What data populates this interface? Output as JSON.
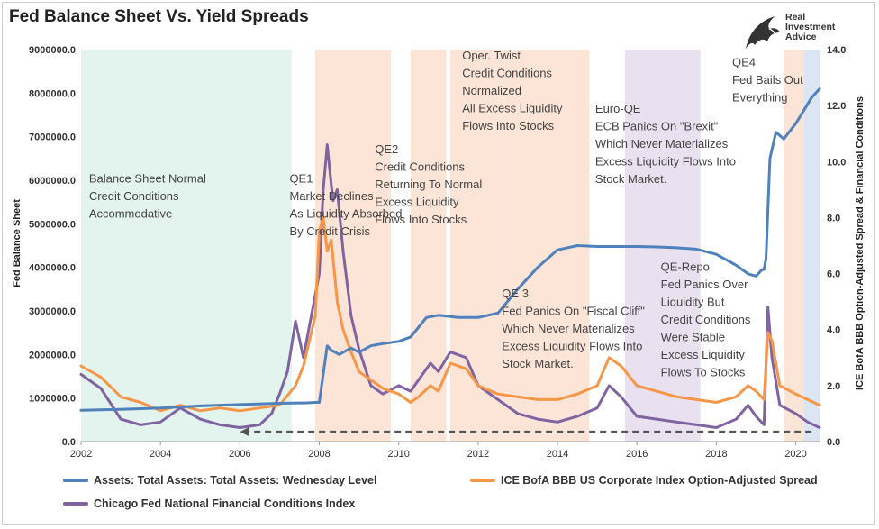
{
  "colors": {
    "assets": "#4f81bd",
    "spread": "#f79646",
    "nfci": "#8064a2",
    "band_green": "#e3f3ee",
    "band_orange": "#fce4d6",
    "band_purple": "#e9e1ef",
    "band_blue": "#dbe5f3",
    "arrow": "#555555"
  },
  "logo": {
    "line1": "Real",
    "line2": "Investment",
    "line3": "Advice"
  },
  "chart_data": {
    "type": "line",
    "title": "Fed Balance Sheet Vs. Yield Spreads",
    "ylabel_left": "Fed Balance Sheet",
    "ylabel_right": "ICE BofA BBB Option-Adjusted Spread & Financial Conditions",
    "xlim": [
      2002,
      2020.6
    ],
    "ylim_left": [
      0,
      9000000
    ],
    "ylim_right": [
      0,
      14
    ],
    "x_ticks": [
      2002,
      2004,
      2006,
      2008,
      2010,
      2012,
      2014,
      2016,
      2018,
      2020
    ],
    "y_left_ticks": [
      "0.0",
      "1000000.0",
      "2000000.0",
      "3000000.0",
      "4000000.0",
      "5000000.0",
      "6000000.0",
      "7000000.0",
      "8000000.0",
      "9000000.0"
    ],
    "y_right_ticks": [
      "0.0",
      "2.0",
      "4.0",
      "6.0",
      "8.0",
      "10.0",
      "12.0",
      "14.0"
    ],
    "grid": false,
    "legend_position": "bottom",
    "bands": [
      {
        "type": "green",
        "from": 2002.0,
        "to": 2007.3
      },
      {
        "type": "orange",
        "from": 2007.9,
        "to": 2009.8
      },
      {
        "type": "orange",
        "from": 2010.3,
        "to": 2011.2
      },
      {
        "type": "orange",
        "from": 2011.3,
        "to": 2012.5
      },
      {
        "type": "orange",
        "from": 2012.5,
        "to": 2014.8
      },
      {
        "type": "purple",
        "from": 2015.7,
        "to": 2017.6
      },
      {
        "type": "orange",
        "from": 2019.7,
        "to": 2020.2
      },
      {
        "type": "blue",
        "from": 2020.2,
        "to": 2020.6
      }
    ],
    "annotations": [
      {
        "lines": [
          "Balance Sheet Normal",
          "Credit Conditions",
          "Accommodative"
        ],
        "x": 2002.2,
        "y": 9.25
      },
      {
        "lines": [
          "QE1",
          "Market Declines",
          "As Liquidity Absorbed",
          "By Credit Crisis"
        ],
        "x": 2007.25,
        "y": 9.25
      },
      {
        "lines": [
          "QE2",
          "Credit Conditions",
          "Returning To Normal",
          "Excess Liquidity",
          "Flows Into Stocks"
        ],
        "x": 2009.4,
        "y": 10.3
      },
      {
        "lines": [
          "Oper. Twist",
          "Credit Conditions",
          "Normalized",
          "All Excess Liquidity",
          "Flows Into Stocks"
        ],
        "x": 2011.6,
        "y": 13.65
      },
      {
        "lines": [
          "Euro-QE",
          "ECB Panics On \"Brexit\"",
          "Which Never Materializes",
          "Excess Liquidity Flows Into",
          "Stock Market."
        ],
        "x": 2014.95,
        "y": 11.75
      },
      {
        "lines": [
          "QE 3",
          "Fed Panics On \"Fiscal Cliff\"",
          "Which Never Materializes",
          "Excess Liquidity Flows Into",
          "Stock Market."
        ],
        "x": 2012.6,
        "y": 5.15
      },
      {
        "lines": [
          "QE-Repo",
          "Fed Panics Over",
          "Liquidity But",
          "Credit Conditions",
          "Were Stable",
          "Excess Liquidity",
          "Flows To Stocks"
        ],
        "x": 2016.6,
        "y": 6.1
      },
      {
        "lines": [
          "QE4",
          "Fed Bails Out",
          "Everything"
        ],
        "x": 2018.4,
        "y": 13.4
      }
    ],
    "series": [
      {
        "name": "Assets: Total Assets: Total Assets: Wednesday Level",
        "axis": "left",
        "x": [
          2002.0,
          2003.0,
          2004.0,
          2005.0,
          2006.0,
          2007.0,
          2007.7,
          2007.9,
          2008.0,
          2008.2,
          2008.3,
          2008.5,
          2008.8,
          2009.0,
          2009.3,
          2009.6,
          2010.0,
          2010.3,
          2010.7,
          2011.0,
          2011.5,
          2012.0,
          2012.5,
          2013.0,
          2013.5,
          2014.0,
          2014.5,
          2015.0,
          2015.5,
          2016.0,
          2016.5,
          2017.0,
          2017.5,
          2018.0,
          2018.5,
          2018.8,
          2019.0,
          2019.15,
          2019.2,
          2019.25,
          2019.35,
          2019.5,
          2019.7,
          2020.0,
          2020.2,
          2020.4,
          2020.6
        ],
        "values": [
          720000,
          740000,
          770000,
          820000,
          850000,
          880000,
          890000,
          900000,
          900000,
          2200000,
          2100000,
          2000000,
          2150000,
          2050000,
          2200000,
          2250000,
          2300000,
          2400000,
          2850000,
          2900000,
          2850000,
          2850000,
          2950000,
          3500000,
          4000000,
          4400000,
          4500000,
          4480000,
          4480000,
          4480000,
          4470000,
          4450000,
          4420000,
          4300000,
          4050000,
          3850000,
          3800000,
          3950000,
          3950000,
          4200000,
          6500000,
          7100000,
          6950000,
          7300000,
          7600000,
          7900000,
          8100000
        ]
      },
      {
        "name": "ICE BofA BBB US Corporate Index Option-Adjusted Spread",
        "axis": "right",
        "x": [
          2002.0,
          2002.5,
          2003.0,
          2003.5,
          2004.0,
          2004.5,
          2005.0,
          2005.5,
          2006.0,
          2006.5,
          2007.0,
          2007.4,
          2007.6,
          2007.9,
          2008.0,
          2008.1,
          2008.2,
          2008.3,
          2008.35,
          2008.45,
          2008.6,
          2008.8,
          2009.0,
          2009.3,
          2009.6,
          2010.0,
          2010.3,
          2010.5,
          2010.8,
          2011.0,
          2011.3,
          2011.7,
          2012.0,
          2012.5,
          2013.0,
          2013.5,
          2014.0,
          2014.5,
          2015.0,
          2015.3,
          2015.6,
          2016.0,
          2016.5,
          2017.0,
          2017.5,
          2018.0,
          2018.5,
          2018.8,
          2019.0,
          2019.2,
          2019.3,
          2019.4,
          2019.6,
          2020.0,
          2020.3,
          2020.6
        ],
        "values": [
          2.7,
          2.3,
          1.6,
          1.4,
          1.1,
          1.3,
          1.1,
          1.2,
          1.1,
          1.2,
          1.3,
          2.0,
          2.7,
          4.5,
          7.5,
          8.0,
          6.8,
          7.2,
          6.5,
          5.0,
          4.0,
          3.2,
          2.5,
          2.2,
          1.9,
          1.7,
          1.4,
          1.6,
          2.0,
          1.8,
          2.8,
          2.6,
          2.0,
          1.7,
          1.6,
          1.5,
          1.5,
          1.7,
          2.0,
          3.0,
          2.7,
          2.0,
          1.8,
          1.6,
          1.5,
          1.4,
          1.6,
          2.0,
          1.8,
          1.5,
          3.9,
          3.6,
          2.0,
          1.7,
          1.5,
          1.3
        ]
      },
      {
        "name": "Chicago Fed National Financial Conditions Index",
        "axis": "right",
        "x": [
          2002.0,
          2002.5,
          2003.0,
          2003.5,
          2004.0,
          2004.5,
          2005.0,
          2005.5,
          2006.0,
          2006.5,
          2006.8,
          2007.0,
          2007.2,
          2007.4,
          2007.6,
          2007.8,
          2008.0,
          2008.1,
          2008.2,
          2008.3,
          2008.35,
          2008.45,
          2008.6,
          2008.8,
          2009.0,
          2009.3,
          2009.6,
          2010.0,
          2010.3,
          2010.5,
          2010.8,
          2011.0,
          2011.3,
          2011.7,
          2012.0,
          2012.5,
          2013.0,
          2013.5,
          2014.0,
          2014.5,
          2015.0,
          2015.3,
          2015.6,
          2016.0,
          2016.5,
          2017.0,
          2017.5,
          2018.0,
          2018.5,
          2018.8,
          2019.0,
          2019.2,
          2019.3,
          2019.4,
          2019.6,
          2020.0,
          2020.3,
          2020.6
        ],
        "values": [
          2.4,
          1.9,
          0.8,
          0.6,
          0.7,
          1.2,
          0.8,
          0.6,
          0.5,
          0.6,
          1.0,
          1.7,
          2.5,
          4.3,
          3.0,
          4.5,
          6.0,
          9.0,
          10.6,
          9.2,
          8.6,
          9.0,
          6.8,
          4.5,
          3.3,
          2.0,
          1.7,
          2.0,
          1.8,
          2.2,
          2.8,
          2.5,
          3.2,
          3.0,
          2.0,
          1.5,
          1.0,
          0.8,
          0.7,
          0.9,
          1.2,
          2.0,
          1.6,
          0.9,
          0.8,
          0.7,
          0.6,
          0.5,
          0.8,
          1.3,
          0.9,
          0.6,
          4.8,
          3.0,
          1.3,
          1.0,
          0.7,
          0.5
        ]
      }
    ],
    "dashed_arrow": {
      "from_x": 2020.4,
      "to_x": 2006.0,
      "y": 0.35
    }
  }
}
